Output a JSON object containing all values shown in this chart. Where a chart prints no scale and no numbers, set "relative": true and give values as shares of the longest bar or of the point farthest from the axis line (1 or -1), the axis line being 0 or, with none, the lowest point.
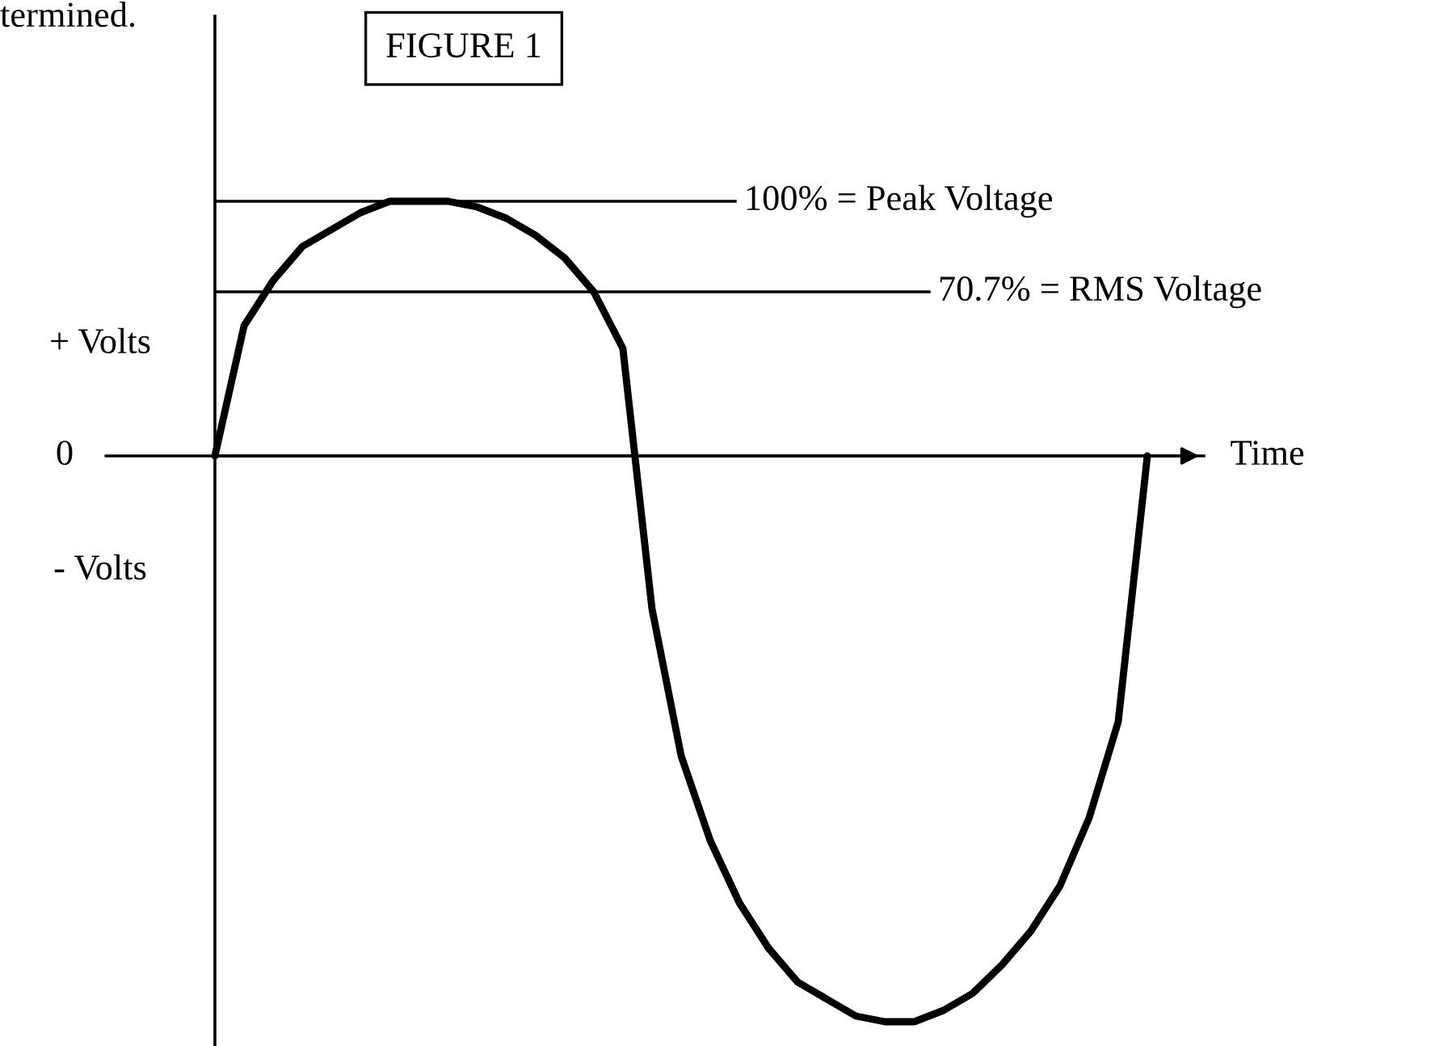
{
  "chart_data": {
    "type": "line",
    "title": "FIGURE 1",
    "xlabel": "Time",
    "relative": true,
    "marker": "none",
    "line_style": "solid",
    "legend": false,
    "categories": [
      null,
      null,
      null,
      null,
      null,
      null,
      null,
      null,
      null,
      null,
      null,
      null,
      null,
      null,
      null,
      null,
      null,
      null,
      null,
      null,
      null,
      null,
      null,
      null,
      null,
      null,
      null,
      null,
      null,
      null,
      null,
      null,
      null
    ],
    "series": [
      {
        "color": "#000000",
        "values": [
          0,
          0.23,
          0.31,
          0.37,
          0.4,
          0.43,
          0.45,
          0.45,
          0.45,
          0.44,
          0.42,
          0.39,
          0.35,
          0.29,
          0.19,
          -0.27,
          -0.53,
          -0.68,
          -0.79,
          -0.87,
          -0.93,
          -0.96,
          -0.99,
          -1,
          -1,
          -0.98,
          -0.95,
          -0.9,
          -0.84,
          -0.76,
          -0.64,
          -0.47,
          0
        ]
      }
    ],
    "ref_lines": [
      {
        "axis": "y",
        "value": 0.45,
        "label": "100% = Peak Voltage",
        "color": "#000000"
      },
      {
        "axis": "y",
        "value": 0.29,
        "label": "70.7% = RMS Voltage",
        "color": "#000000"
      }
    ],
    "annotations": [
      "termined.",
      "+ Volts",
      "0",
      "- Volts"
    ]
  }
}
